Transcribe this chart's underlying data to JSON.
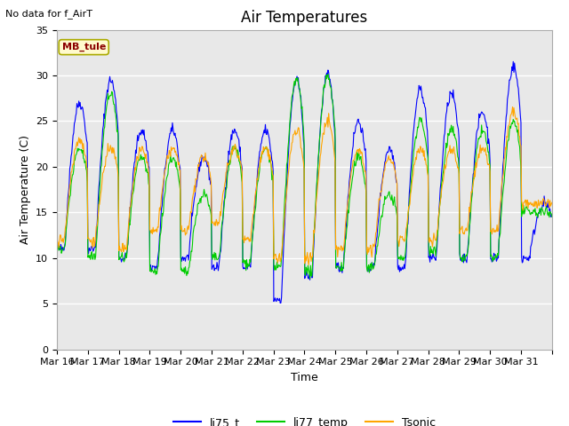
{
  "title": "Air Temperatures",
  "top_left_text": "No data for f_AirT",
  "xlabel": "Time",
  "ylabel": "Air Temperature (C)",
  "ylim": [
    0,
    35
  ],
  "yticks": [
    0,
    5,
    10,
    15,
    20,
    25,
    30,
    35
  ],
  "x_labels": [
    "Mar 16",
    "Mar 17",
    "Mar 18",
    "Mar 19",
    "Mar 20",
    "Mar 21",
    "Mar 22",
    "Mar 23",
    "Mar 24",
    "Mar 25",
    "Mar 26",
    "Mar 27",
    "Mar 28",
    "Mar 29",
    "Mar 30",
    "Mar 31"
  ],
  "station_label": "MB_tule",
  "station_label_color": "#8B0000",
  "station_box_facecolor": "#FFFACD",
  "station_box_edgecolor": "#AAAA00",
  "line_colors": {
    "li75_t": "#0000FF",
    "li77_temp": "#00CC00",
    "Tsonic": "#FFA500"
  },
  "axes_facecolor": "#E8E8E8",
  "grid_color": "#FFFFFF",
  "title_fontsize": 12,
  "axis_label_fontsize": 9,
  "tick_label_fontsize": 8,
  "daily_min_li75": [
    11,
    11,
    10,
    9,
    10,
    9,
    9,
    5.5,
    8,
    9,
    9,
    9,
    10,
    10,
    10,
    10
  ],
  "daily_max_li75": [
    27,
    29.5,
    24,
    24,
    21,
    24,
    24,
    29.5,
    30,
    25,
    22,
    28.5,
    28,
    26,
    31,
    16
  ],
  "daily_min_li77": [
    11,
    10,
    10,
    8.5,
    8.5,
    10,
    9.5,
    9,
    8.5,
    9,
    9,
    10,
    11,
    10,
    10,
    15
  ],
  "daily_max_li77": [
    22,
    28,
    21,
    21,
    17,
    22,
    22,
    29.5,
    30,
    21,
    17,
    25,
    24,
    24,
    25,
    15
  ],
  "daily_min_Ts": [
    12,
    12,
    11,
    13,
    13,
    14,
    12,
    10,
    10,
    11,
    11,
    12,
    12,
    13,
    13,
    16
  ],
  "daily_max_Ts": [
    23,
    22,
    22,
    22,
    21,
    22,
    22,
    24,
    25,
    22,
    21,
    22,
    22,
    22,
    26,
    16
  ]
}
